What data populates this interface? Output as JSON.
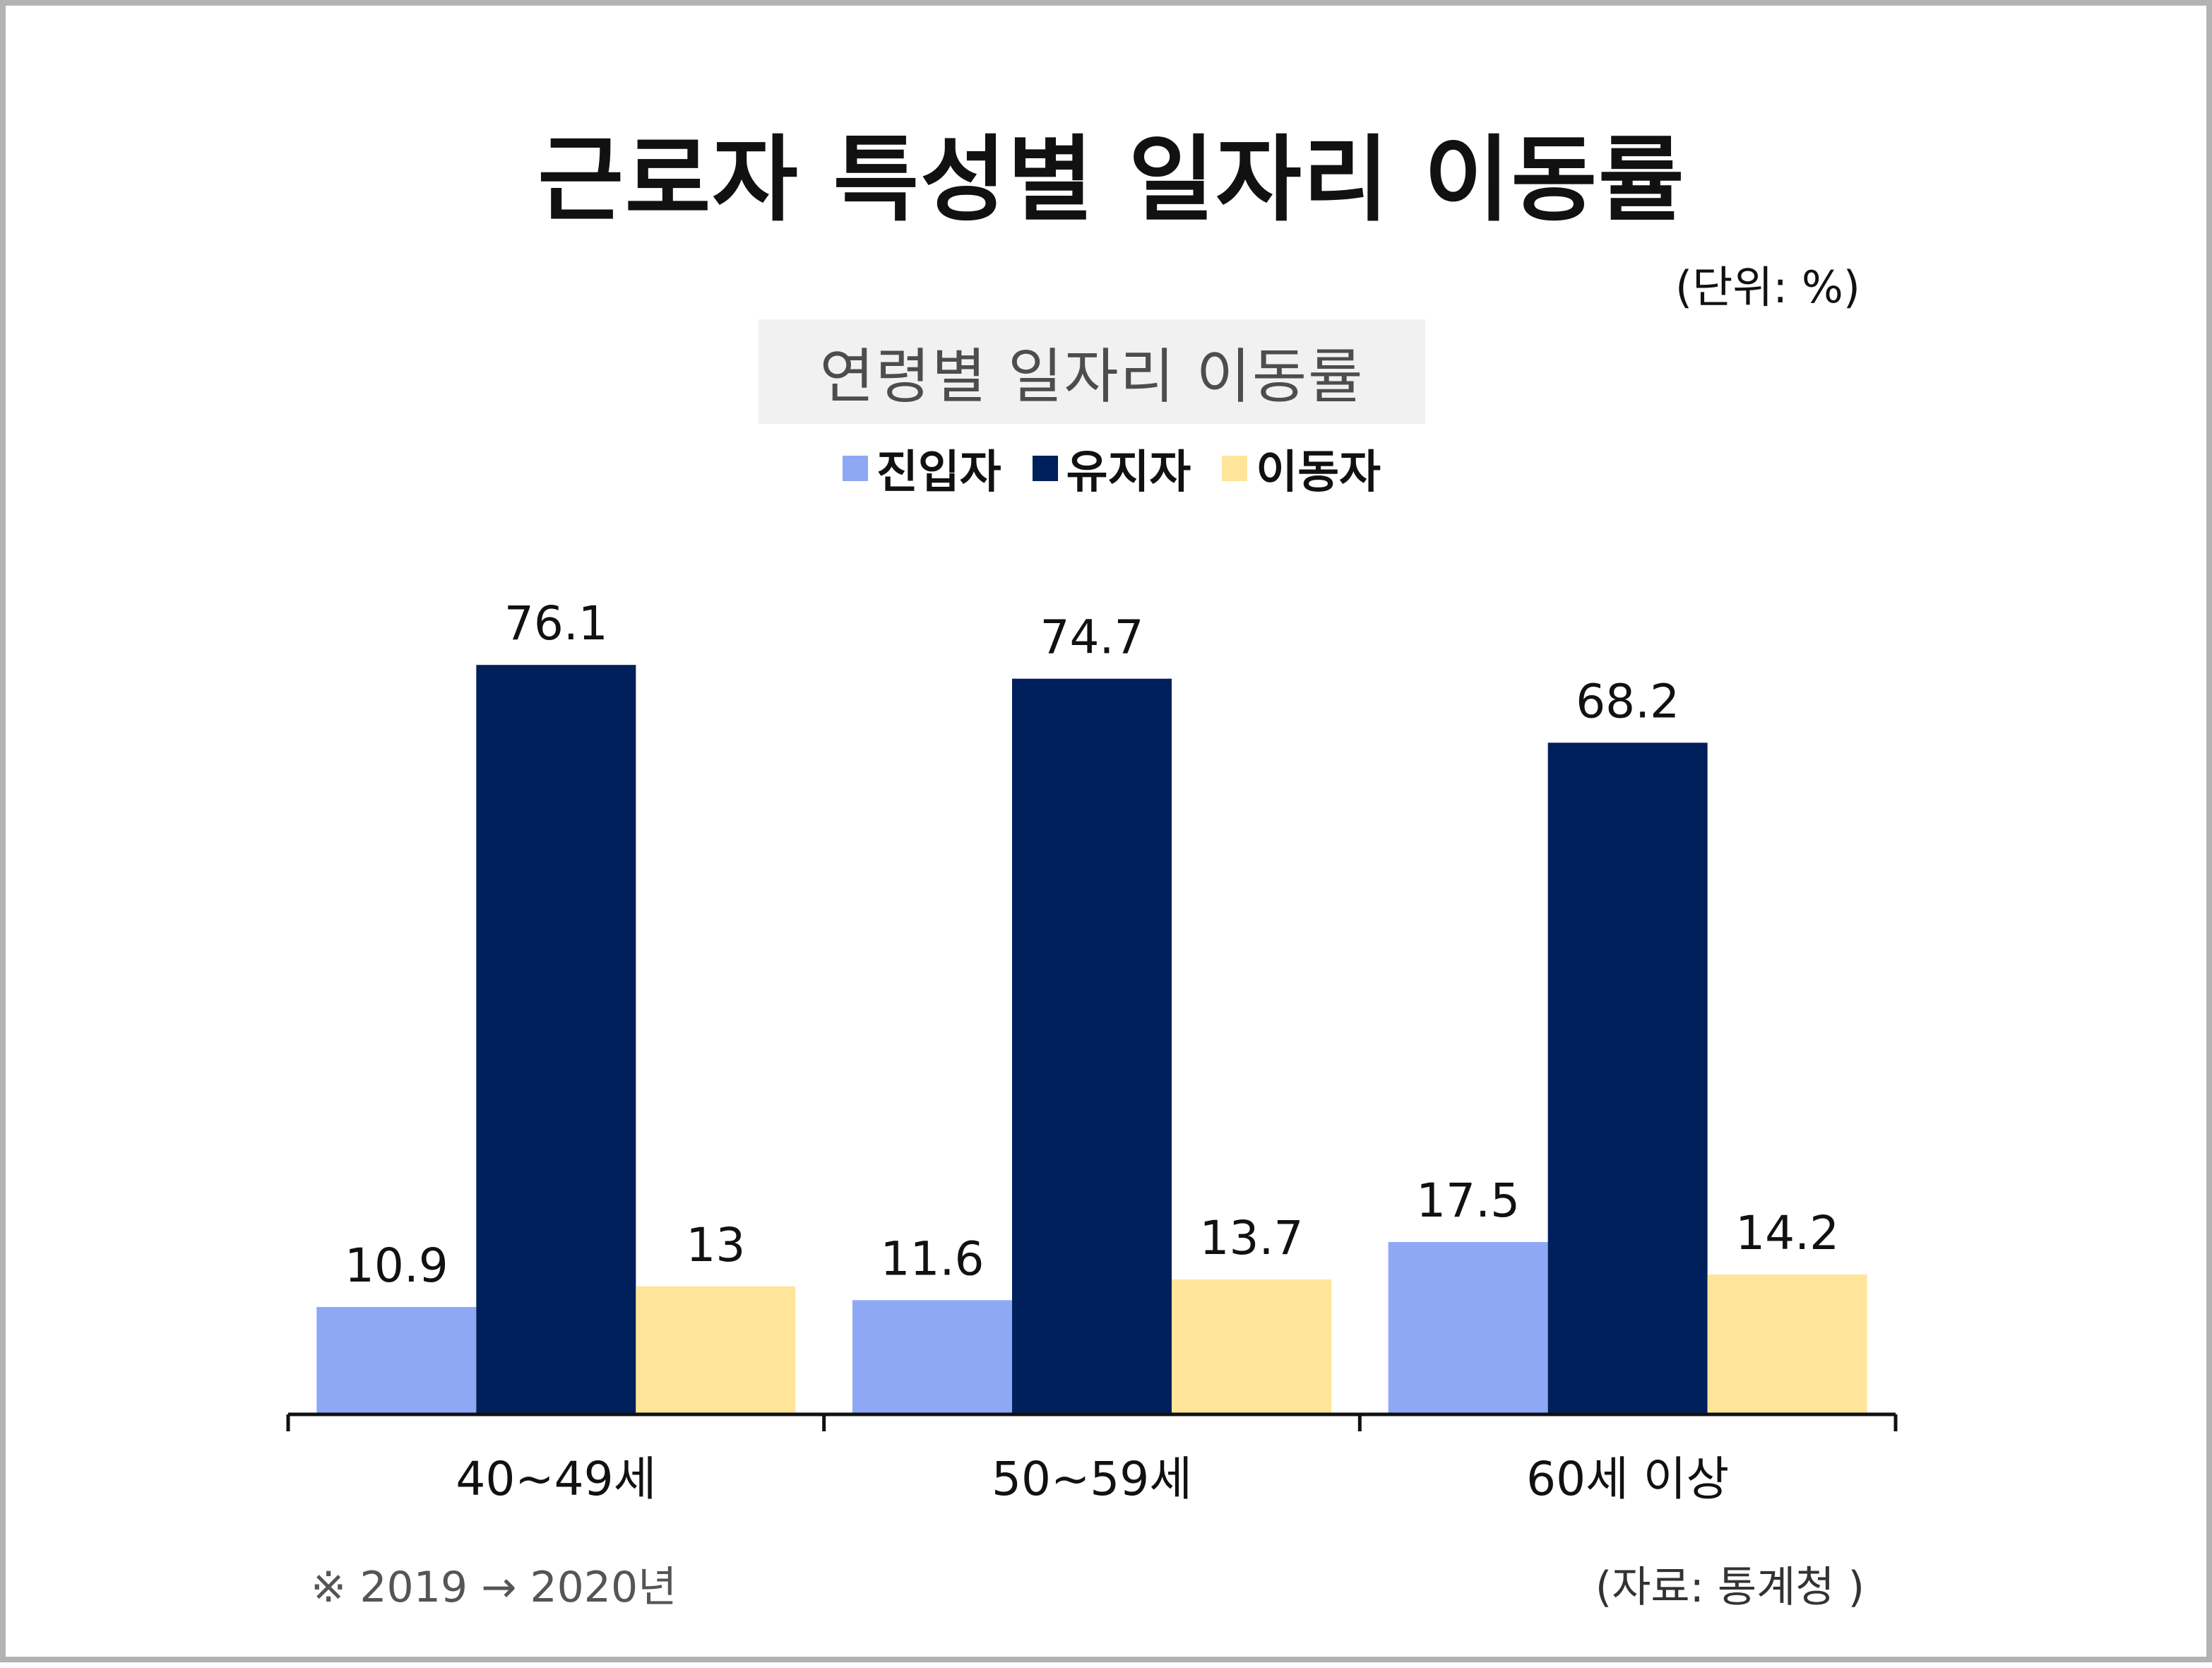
{
  "title": "근로자 특성별 일자리 이동률",
  "unit": "(단위: %)",
  "subtitle": "연령별 일자리 이동률",
  "note": "※ 2019 → 2020년",
  "source": "(자료: 통계청 )",
  "colors": {
    "entrant": "#8ea8f5",
    "stayer": "#00205b",
    "mover": "#ffe599",
    "axis": "#111111",
    "label": "#111111"
  },
  "chart_data": {
    "type": "bar",
    "categories": [
      "40~49세",
      "50~59세",
      "60세 이상"
    ],
    "series": [
      {
        "name": "진입자",
        "values": [
          10.9,
          11.6,
          17.5
        ]
      },
      {
        "name": "유지자",
        "values": [
          76.1,
          74.7,
          68.2
        ]
      },
      {
        "name": "이동자",
        "values": [
          13,
          13.7,
          14.2
        ]
      }
    ],
    "ylim": [
      0,
      100
    ],
    "grid": false,
    "legend_placement": "top-center",
    "value_labels": [
      [
        "10.9",
        "11.6",
        "17.5"
      ],
      [
        "76.1",
        "74.7",
        "68.2"
      ],
      [
        "13",
        "13.7",
        "14.2"
      ]
    ]
  }
}
